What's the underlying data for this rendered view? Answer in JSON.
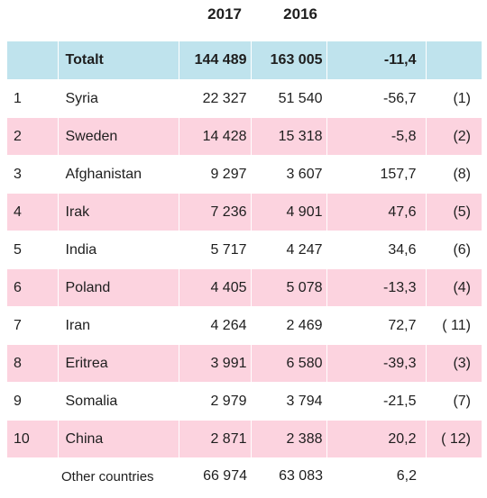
{
  "years": {
    "y2017": "2017",
    "y2016": "2016"
  },
  "total": {
    "label": "Totalt",
    "v2017": "144 489",
    "v2016": "163 005",
    "change": "-11,4"
  },
  "rows": [
    {
      "rank": "1",
      "country": "Syria",
      "v2017": "22 327",
      "v2016": "51 540",
      "change": "-56,7",
      "prev": "(1)"
    },
    {
      "rank": "2",
      "country": "Sweden",
      "v2017": "14 428",
      "v2016": "15 318",
      "change": "-5,8",
      "prev": "(2)"
    },
    {
      "rank": "3",
      "country": "Afghanistan",
      "v2017": "9 297",
      "v2016": "3 607",
      "change": "157,7",
      "prev": "(8)"
    },
    {
      "rank": "4",
      "country": "Irak",
      "v2017": "7 236",
      "v2016": "4 901",
      "change": "47,6",
      "prev": "(5)"
    },
    {
      "rank": "5",
      "country": "India",
      "v2017": "5 717",
      "v2016": "4 247",
      "change": "34,6",
      "prev": "(6)"
    },
    {
      "rank": "6",
      "country": "Poland",
      "v2017": "4 405",
      "v2016": "5 078",
      "change": "-13,3",
      "prev": "(4)"
    },
    {
      "rank": "7",
      "country": "Iran",
      "v2017": "4 264",
      "v2016": "2 469",
      "change": "72,7",
      "prev": "( 11)"
    },
    {
      "rank": "8",
      "country": "Eritrea",
      "v2017": "3 991",
      "v2016": "6 580",
      "change": "-39,3",
      "prev": "(3)"
    },
    {
      "rank": "9",
      "country": "Somalia",
      "v2017": "2 979",
      "v2016": "3 794",
      "change": "-21,5",
      "prev": "(7)"
    },
    {
      "rank": "10",
      "country": "China",
      "v2017": "2 871",
      "v2016": "2 388",
      "change": "20,2",
      "prev": "( 12)"
    }
  ],
  "other": {
    "label": "Other countries",
    "v2017": "66 974",
    "v2016": "63 083",
    "change": "6,2"
  },
  "colors": {
    "header": "#bfe3ed",
    "stripe": "#fcd3df"
  }
}
